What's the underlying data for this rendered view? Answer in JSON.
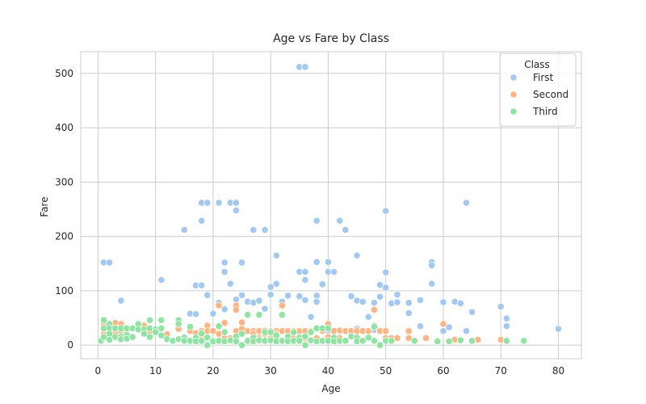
{
  "chart_data": {
    "type": "scatter",
    "title": "Age vs Fare by Class",
    "xlabel": "Age",
    "ylabel": "Fare",
    "xlim": [
      -3,
      84
    ],
    "ylim": [
      -25,
      540
    ],
    "xticks": [
      0,
      10,
      20,
      30,
      40,
      50,
      60,
      70,
      80
    ],
    "yticks": [
      0,
      100,
      200,
      300,
      400,
      500
    ],
    "grid": true,
    "legend": {
      "title": "Class",
      "placement": "top-right"
    },
    "series": [
      {
        "name": "First",
        "color": "#a1c9f4",
        "points": [
          [
            1,
            152
          ],
          [
            2,
            152
          ],
          [
            4,
            82
          ],
          [
            11,
            120
          ],
          [
            15,
            212
          ],
          [
            16,
            58
          ],
          [
            17,
            110
          ],
          [
            17,
            57
          ],
          [
            18,
            262
          ],
          [
            18,
            229
          ],
          [
            18,
            110
          ],
          [
            19,
            262
          ],
          [
            19,
            92
          ],
          [
            20,
            58
          ],
          [
            21,
            262
          ],
          [
            21,
            78
          ],
          [
            22,
            152
          ],
          [
            22,
            135
          ],
          [
            22,
            66
          ],
          [
            23,
            262
          ],
          [
            23,
            113
          ],
          [
            24,
            262
          ],
          [
            24,
            248
          ],
          [
            24,
            84
          ],
          [
            24,
            70
          ],
          [
            25,
            152
          ],
          [
            25,
            92
          ],
          [
            26,
            80
          ],
          [
            27,
            212
          ],
          [
            27,
            78
          ],
          [
            28,
            82
          ],
          [
            29,
            212
          ],
          [
            29,
            67
          ],
          [
            30,
            107
          ],
          [
            30,
            93
          ],
          [
            31,
            165
          ],
          [
            31,
            113
          ],
          [
            32,
            80
          ],
          [
            33,
            91
          ],
          [
            35,
            512
          ],
          [
            35,
            135
          ],
          [
            35,
            90
          ],
          [
            36,
            512
          ],
          [
            36,
            135
          ],
          [
            36,
            120
          ],
          [
            36,
            83
          ],
          [
            37,
            52
          ],
          [
            38,
            229
          ],
          [
            38,
            153
          ],
          [
            38,
            91
          ],
          [
            38,
            80
          ],
          [
            39,
            112
          ],
          [
            40,
            153
          ],
          [
            40,
            135
          ],
          [
            41,
            135
          ],
          [
            42,
            229
          ],
          [
            43,
            212
          ],
          [
            44,
            90
          ],
          [
            45,
            165
          ],
          [
            45,
            82
          ],
          [
            46,
            80
          ],
          [
            47,
            52
          ],
          [
            48,
            78
          ],
          [
            49,
            111
          ],
          [
            49,
            89
          ],
          [
            50,
            247
          ],
          [
            50,
            134
          ],
          [
            50,
            106
          ],
          [
            51,
            77
          ],
          [
            52,
            93
          ],
          [
            52,
            79
          ],
          [
            54,
            78
          ],
          [
            54,
            59
          ],
          [
            56,
            83
          ],
          [
            58,
            153
          ],
          [
            58,
            147
          ],
          [
            58,
            113
          ],
          [
            60,
            79
          ],
          [
            61,
            33
          ],
          [
            62,
            80
          ],
          [
            63,
            77
          ],
          [
            64,
            262
          ],
          [
            65,
            61
          ],
          [
            70,
            71
          ],
          [
            71,
            49
          ],
          [
            71,
            35
          ],
          [
            80,
            30
          ],
          [
            34,
            27
          ],
          [
            36,
            26
          ],
          [
            40,
            27
          ],
          [
            45,
            30
          ],
          [
            48,
            28
          ],
          [
            56,
            35
          ],
          [
            60,
            26
          ],
          [
            64,
            26
          ]
        ]
      },
      {
        "name": "Second",
        "color": "#ffb482",
        "points": [
          [
            1,
            39
          ],
          [
            1,
            29
          ],
          [
            1,
            20
          ],
          [
            2,
            26
          ],
          [
            3,
            41
          ],
          [
            3,
            21
          ],
          [
            4,
            39
          ],
          [
            4,
            27
          ],
          [
            5,
            27
          ],
          [
            8,
            36
          ],
          [
            9,
            26
          ],
          [
            12,
            20
          ],
          [
            14,
            30
          ],
          [
            16,
            26
          ],
          [
            17,
            22
          ],
          [
            18,
            26
          ],
          [
            18,
            13
          ],
          [
            19,
            36
          ],
          [
            19,
            26
          ],
          [
            20,
            26
          ],
          [
            21,
            73
          ],
          [
            21,
            21
          ],
          [
            22,
            41
          ],
          [
            22,
            13
          ],
          [
            23,
            13
          ],
          [
            24,
            73
          ],
          [
            24,
            65
          ],
          [
            24,
            26
          ],
          [
            25,
            42
          ],
          [
            25,
            30
          ],
          [
            26,
            26
          ],
          [
            27,
            26
          ],
          [
            27,
            21
          ],
          [
            28,
            26
          ],
          [
            28,
            13
          ],
          [
            29,
            27
          ],
          [
            29,
            21
          ],
          [
            30,
            26
          ],
          [
            30,
            13
          ],
          [
            31,
            26
          ],
          [
            31,
            21
          ],
          [
            32,
            73
          ],
          [
            32,
            26
          ],
          [
            33,
            26
          ],
          [
            34,
            26
          ],
          [
            34,
            13
          ],
          [
            35,
            26
          ],
          [
            36,
            26
          ],
          [
            36,
            13
          ],
          [
            37,
            26
          ],
          [
            38,
            13
          ],
          [
            39,
            26
          ],
          [
            40,
            39
          ],
          [
            40,
            15
          ],
          [
            41,
            26
          ],
          [
            42,
            27
          ],
          [
            42,
            13
          ],
          [
            43,
            26
          ],
          [
            44,
            26
          ],
          [
            45,
            26
          ],
          [
            46,
            26
          ],
          [
            47,
            26
          ],
          [
            48,
            65
          ],
          [
            48,
            36
          ],
          [
            49,
            26
          ],
          [
            50,
            26
          ],
          [
            50,
            13
          ],
          [
            51,
            13
          ],
          [
            52,
            13
          ],
          [
            54,
            26
          ],
          [
            54,
            13
          ],
          [
            57,
            13
          ],
          [
            60,
            39
          ],
          [
            62,
            10
          ],
          [
            66,
            10
          ],
          [
            70,
            10
          ]
        ]
      },
      {
        "name": "Third",
        "color": "#8de5a1",
        "points": [
          [
            0.5,
            8
          ],
          [
            1,
            46
          ],
          [
            1,
            31
          ],
          [
            1,
            15
          ],
          [
            2,
            39
          ],
          [
            2,
            31
          ],
          [
            2,
            21
          ],
          [
            2,
            10
          ],
          [
            3,
            31
          ],
          [
            3,
            15
          ],
          [
            4,
            31
          ],
          [
            4,
            16
          ],
          [
            4,
            11
          ],
          [
            5,
            31
          ],
          [
            5,
            19
          ],
          [
            5,
            12
          ],
          [
            6,
            31
          ],
          [
            6,
            15
          ],
          [
            7,
            39
          ],
          [
            7,
            29
          ],
          [
            8,
            29
          ],
          [
            8,
            21
          ],
          [
            9,
            46
          ],
          [
            9,
            31
          ],
          [
            9,
            15
          ],
          [
            10,
            29
          ],
          [
            10,
            24
          ],
          [
            11,
            46
          ],
          [
            11,
            31
          ],
          [
            11,
            18
          ],
          [
            12,
            11
          ],
          [
            13,
            8
          ],
          [
            14,
            46
          ],
          [
            14,
            39
          ],
          [
            14,
            11
          ],
          [
            15,
            14
          ],
          [
            15,
            8
          ],
          [
            16,
            34
          ],
          [
            16,
            8
          ],
          [
            17,
            14
          ],
          [
            17,
            7
          ],
          [
            18,
            22
          ],
          [
            18,
            8
          ],
          [
            19,
            14
          ],
          [
            19,
            0
          ],
          [
            20,
            9
          ],
          [
            20,
            7
          ],
          [
            21,
            35
          ],
          [
            21,
            8
          ],
          [
            22,
            24
          ],
          [
            22,
            7
          ],
          [
            23,
            8
          ],
          [
            23,
            9
          ],
          [
            24,
            16
          ],
          [
            24,
            7
          ],
          [
            25,
            21
          ],
          [
            25,
            0
          ],
          [
            26,
            56
          ],
          [
            26,
            8
          ],
          [
            27,
            14
          ],
          [
            27,
            7
          ],
          [
            28,
            56
          ],
          [
            28,
            9
          ],
          [
            29,
            24
          ],
          [
            29,
            8
          ],
          [
            30,
            24
          ],
          [
            30,
            9
          ],
          [
            31,
            18
          ],
          [
            31,
            7
          ],
          [
            32,
            56
          ],
          [
            32,
            8
          ],
          [
            33,
            16
          ],
          [
            33,
            7
          ],
          [
            34,
            24
          ],
          [
            34,
            8
          ],
          [
            35,
            14
          ],
          [
            35,
            8
          ],
          [
            36,
            16
          ],
          [
            36,
            0
          ],
          [
            37,
            24
          ],
          [
            37,
            9
          ],
          [
            38,
            31
          ],
          [
            38,
            7
          ],
          [
            39,
            31
          ],
          [
            39,
            8
          ],
          [
            40,
            31
          ],
          [
            40,
            8
          ],
          [
            41,
            14
          ],
          [
            41,
            7
          ],
          [
            42,
            8
          ],
          [
            43,
            8
          ],
          [
            44,
            16
          ],
          [
            45,
            14
          ],
          [
            45,
            7
          ],
          [
            46,
            8
          ],
          [
            47,
            14
          ],
          [
            48,
            34
          ],
          [
            48,
            8
          ],
          [
            49,
            0
          ],
          [
            50,
            8
          ],
          [
            51,
            8
          ],
          [
            55,
            8
          ],
          [
            59,
            7
          ],
          [
            61,
            7
          ],
          [
            63,
            9
          ],
          [
            65,
            8
          ],
          [
            71,
            8
          ],
          [
            74,
            8
          ]
        ]
      }
    ]
  }
}
